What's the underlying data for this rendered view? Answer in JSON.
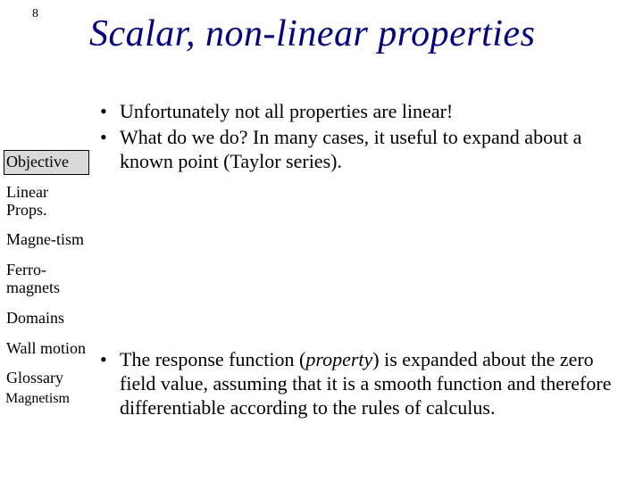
{
  "page_number": "8",
  "title": "Scalar, non-linear properties",
  "sidebar": {
    "items": [
      {
        "label": "Objective",
        "boxed": true
      },
      {
        "label": "Linear Props.",
        "boxed": false
      },
      {
        "label": "Magne-tism",
        "boxed": false
      },
      {
        "label": "Ferro-magnets",
        "boxed": false
      },
      {
        "label": "Domains",
        "boxed": false
      },
      {
        "label": "Wall motion",
        "boxed": false
      },
      {
        "label": "Glossary",
        "boxed": false
      }
    ],
    "sublabel": "Magnetism"
  },
  "bullets_top": [
    "Unfortunately not all properties are linear!",
    "What do we do?  In many cases, it useful to expand about a known point (Taylor series)."
  ],
  "bullets_bottom_prefix": "The response function (",
  "bullets_bottom_italic": "property",
  "bullets_bottom_suffix": ") is expanded about the zero field value, assuming that it is a smooth function and therefore differentiable according to the rules of calculus.",
  "colors": {
    "title": "#000080",
    "text": "#000000",
    "sidebar_box_bg": "#d9d9d9",
    "background": "#ffffff"
  }
}
